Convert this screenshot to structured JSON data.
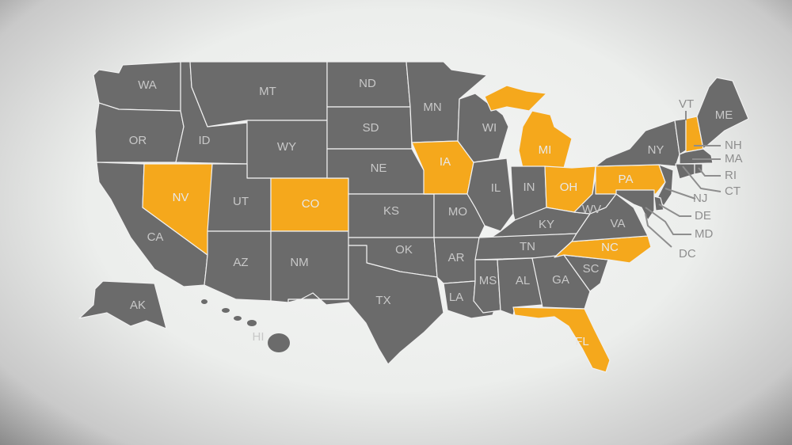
{
  "colors": {
    "state": "#6b6b6b",
    "highlight": "#f5a81c",
    "label": "#c8c8c8",
    "callout": "#8e8e8e"
  },
  "states": [
    {
      "abbr": "WA",
      "highlighted": false
    },
    {
      "abbr": "OR",
      "highlighted": false
    },
    {
      "abbr": "CA",
      "highlighted": false
    },
    {
      "abbr": "NV",
      "highlighted": true
    },
    {
      "abbr": "ID",
      "highlighted": false
    },
    {
      "abbr": "MT",
      "highlighted": false
    },
    {
      "abbr": "WY",
      "highlighted": false
    },
    {
      "abbr": "UT",
      "highlighted": false
    },
    {
      "abbr": "CO",
      "highlighted": true
    },
    {
      "abbr": "AZ",
      "highlighted": false
    },
    {
      "abbr": "NM",
      "highlighted": false
    },
    {
      "abbr": "ND",
      "highlighted": false
    },
    {
      "abbr": "SD",
      "highlighted": false
    },
    {
      "abbr": "NE",
      "highlighted": false
    },
    {
      "abbr": "KS",
      "highlighted": false
    },
    {
      "abbr": "OK",
      "highlighted": false
    },
    {
      "abbr": "TX",
      "highlighted": false
    },
    {
      "abbr": "MN",
      "highlighted": false
    },
    {
      "abbr": "IA",
      "highlighted": true
    },
    {
      "abbr": "MO",
      "highlighted": false
    },
    {
      "abbr": "AR",
      "highlighted": false
    },
    {
      "abbr": "LA",
      "highlighted": false
    },
    {
      "abbr": "WI",
      "highlighted": false
    },
    {
      "abbr": "IL",
      "highlighted": false
    },
    {
      "abbr": "MI",
      "highlighted": true
    },
    {
      "abbr": "IN",
      "highlighted": false
    },
    {
      "abbr": "OH",
      "highlighted": true
    },
    {
      "abbr": "KY",
      "highlighted": false
    },
    {
      "abbr": "TN",
      "highlighted": false
    },
    {
      "abbr": "MS",
      "highlighted": false
    },
    {
      "abbr": "AL",
      "highlighted": false
    },
    {
      "abbr": "GA",
      "highlighted": false
    },
    {
      "abbr": "FL",
      "highlighted": true
    },
    {
      "abbr": "SC",
      "highlighted": false
    },
    {
      "abbr": "NC",
      "highlighted": true
    },
    {
      "abbr": "VA",
      "highlighted": false
    },
    {
      "abbr": "WV",
      "highlighted": false
    },
    {
      "abbr": "PA",
      "highlighted": true
    },
    {
      "abbr": "NY",
      "highlighted": false
    },
    {
      "abbr": "VT",
      "highlighted": false
    },
    {
      "abbr": "NH",
      "highlighted": true
    },
    {
      "abbr": "ME",
      "highlighted": false
    },
    {
      "abbr": "MA",
      "highlighted": false
    },
    {
      "abbr": "CT",
      "highlighted": false
    },
    {
      "abbr": "RI",
      "highlighted": false
    },
    {
      "abbr": "NJ",
      "highlighted": false
    },
    {
      "abbr": "DE",
      "highlighted": false
    },
    {
      "abbr": "MD",
      "highlighted": false
    },
    {
      "abbr": "DC",
      "highlighted": false
    },
    {
      "abbr": "AK",
      "highlighted": false
    },
    {
      "abbr": "HI",
      "highlighted": false
    }
  ]
}
